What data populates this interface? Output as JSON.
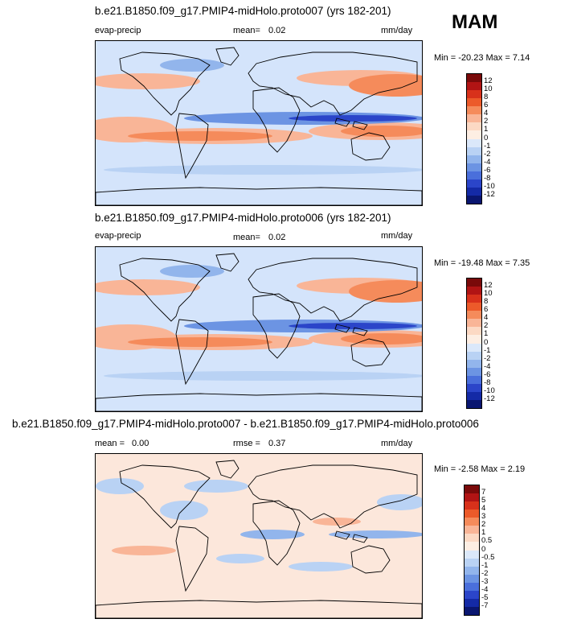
{
  "season": "MAM",
  "colors": {
    "ocean_base": "#d4e4fb",
    "diff_base": "#fce7db",
    "land_line": "#000000"
  },
  "panels": [
    {
      "title": "b.e21.B1850.f09_g17.PMIP4-midHolo.proto007 (yrs 182-201)",
      "left_label": "evap-precip",
      "mean_label": "mean=",
      "mean_value": "0.02",
      "units": "mm/day",
      "minmax": "Min = -20.23 Max =  7.14"
    },
    {
      "title": "b.e21.B1850.f09_g17.PMIP4-midHolo.proto006 (yrs 182-201)",
      "left_label": "evap-precip",
      "mean_label": "mean=",
      "mean_value": "0.02",
      "units": "mm/day",
      "minmax": "Min = -19.48 Max =  7.35"
    },
    {
      "title": "b.e21.B1850.f09_g17.PMIP4-midHolo.proto007 - b.e21.B1850.f09_g17.PMIP4-midHolo.proto006",
      "left_label": "mean =",
      "mean_value": "0.00",
      "mid_label": "rmse =",
      "mid_value": "0.37",
      "units": "mm/day",
      "minmax": "Min = -2.58 Max =  2.19"
    }
  ],
  "chart_data": [
    {
      "type": "heatmap",
      "title": "b.e21.B1850.f09_g17.PMIP4-midHolo.proto007 (yrs 182-201)",
      "variable": "evap-precip",
      "units": "mm/day",
      "mean": 0.02,
      "min": -20.23,
      "max": 7.14,
      "colorbar_levels": [
        "12",
        "10",
        "8",
        "6",
        "4",
        "2",
        "1",
        "0",
        "-1",
        "-2",
        "-4",
        "-6",
        "-8",
        "-10",
        "-12"
      ],
      "colorbar_colors": [
        "#7a0a0a",
        "#b11414",
        "#d8311b",
        "#ec5a2a",
        "#f58b5b",
        "#f9b597",
        "#fcd9c4",
        "#fdeee3",
        "#dbe8fa",
        "#b9d2f4",
        "#92b5ec",
        "#6c94e3",
        "#4a6fdb",
        "#2b45c9",
        "#142aa6",
        "#0a1670"
      ]
    },
    {
      "type": "heatmap",
      "title": "b.e21.B1850.f09_g17.PMIP4-midHolo.proto006 (yrs 182-201)",
      "variable": "evap-precip",
      "units": "mm/day",
      "mean": 0.02,
      "min": -19.48,
      "max": 7.35,
      "colorbar_levels": [
        "12",
        "10",
        "8",
        "6",
        "4",
        "2",
        "1",
        "0",
        "-1",
        "-2",
        "-4",
        "-6",
        "-8",
        "-10",
        "-12"
      ],
      "colorbar_colors": [
        "#7a0a0a",
        "#b11414",
        "#d8311b",
        "#ec5a2a",
        "#f58b5b",
        "#f9b597",
        "#fcd9c4",
        "#fdeee3",
        "#dbe8fa",
        "#b9d2f4",
        "#92b5ec",
        "#6c94e3",
        "#4a6fdb",
        "#2b45c9",
        "#142aa6",
        "#0a1670"
      ]
    },
    {
      "type": "heatmap",
      "title": "b.e21.B1850.f09_g17.PMIP4-midHolo.proto007 - b.e21.B1850.f09_g17.PMIP4-midHolo.proto006",
      "units": "mm/day",
      "mean": 0.0,
      "rmse": 0.37,
      "min": -2.58,
      "max": 2.19,
      "colorbar_levels": [
        "7",
        "5",
        "4",
        "3",
        "2",
        "1",
        "0.5",
        "0",
        "-0.5",
        "-1",
        "-2",
        "-3",
        "-4",
        "-5",
        "-7"
      ],
      "colorbar_colors": [
        "#7a0a0a",
        "#b11414",
        "#d8311b",
        "#ec5a2a",
        "#f58b5b",
        "#f9b597",
        "#fcd9c4",
        "#fdeee3",
        "#dbe8fa",
        "#b9d2f4",
        "#92b5ec",
        "#6c94e3",
        "#4a6fdb",
        "#2b45c9",
        "#142aa6",
        "#0a1670"
      ]
    }
  ]
}
